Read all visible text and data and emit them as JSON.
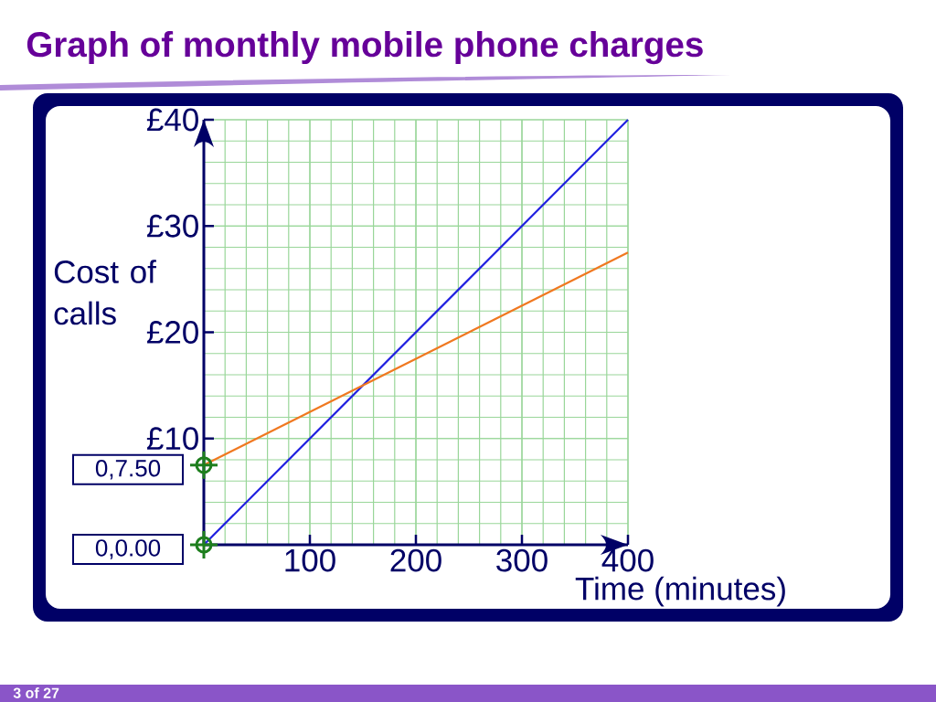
{
  "chart_data": {
    "type": "line",
    "title": "Graph of monthly mobile phone charges",
    "xlabel": "Time (minutes)",
    "ylabel": "Cost of calls",
    "x": [
      0,
      400
    ],
    "series": [
      {
        "color": "#2020e0",
        "values": [
          0,
          40
        ]
      },
      {
        "color": "#f07820",
        "values": [
          7.5,
          27.5
        ]
      }
    ],
    "xlim": [
      0,
      400
    ],
    "ylim": [
      0,
      40
    ],
    "xticks": [
      100,
      200,
      300,
      400
    ],
    "yticks": [
      {
        "value": 10,
        "label": "£10"
      },
      {
        "value": 20,
        "label": "£20"
      },
      {
        "value": 30,
        "label": "£30"
      },
      {
        "value": 40,
        "label": "£40"
      }
    ],
    "grid": true,
    "annotations": [
      {
        "text": "0,7.50",
        "x": 0,
        "y": 7.5
      },
      {
        "text": "0,0.00",
        "x": 0,
        "y": 0
      },
      "3 of 27"
    ]
  }
}
